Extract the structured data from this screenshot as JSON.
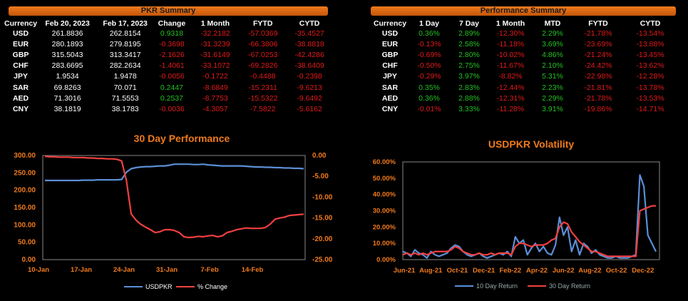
{
  "pkr_summary": {
    "title": "PKR Summary",
    "headers": [
      "Currency",
      "Feb 20, 2023",
      "Feb 17, 2023",
      "Change",
      "1 Month",
      "FYTD",
      "CYTD"
    ],
    "rows": [
      [
        "USD",
        "261.8836",
        "262.8154",
        "0.9318",
        "-32.2182",
        "-57.0369",
        "-35.4527"
      ],
      [
        "EUR",
        "280.1893",
        "279.8195",
        "-0.3698",
        "-31.3239",
        "-66.3806",
        "-38.8818"
      ],
      [
        "GBP",
        "315.5043",
        "313.3417",
        "-2.1626",
        "-31.6149",
        "-67.0253",
        "-42.4286"
      ],
      [
        "CHF",
        "283.6695",
        "282.2634",
        "-1.4061",
        "-33.1072",
        "-69.2826",
        "-38.6409"
      ],
      [
        "JPY",
        "1.9534",
        "1.9478",
        "-0.0056",
        "-0.1722",
        "-0.4488",
        "-0.2398"
      ],
      [
        "SAR",
        "69.8263",
        "70.071",
        "0.2447",
        "-8.6849",
        "-15.2311",
        "-9.6213"
      ],
      [
        "AED",
        "71.3016",
        "71.5553",
        "0.2537",
        "-8.7753",
        "-15.5322",
        "-9.6492"
      ],
      [
        "CNY",
        "38.1819",
        "38.1783",
        "-0.0036",
        "-4.3057",
        "-7.5822",
        "-5.6162"
      ]
    ]
  },
  "performance_summary": {
    "title": "Performance Summary",
    "headers": [
      "Currency",
      "1 Day",
      "7 Day",
      "1 Month",
      "MTD",
      "FYTD",
      "CYTD"
    ],
    "rows": [
      [
        "USD",
        "0.36%",
        "2.89%",
        "-12.30%",
        "2.29%",
        "-21.78%",
        "-13.54%"
      ],
      [
        "EUR",
        "-0.13%",
        "2.58%",
        "-11.18%",
        "3.69%",
        "-23.69%",
        "-13.88%"
      ],
      [
        "GBP",
        "-0.69%",
        "2.80%",
        "-10.02%",
        "4.86%",
        "-21.24%",
        "-13.45%"
      ],
      [
        "CHF",
        "-0.50%",
        "2.75%",
        "-11.67%",
        "2.10%",
        "-24.42%",
        "-13.62%"
      ],
      [
        "JPY",
        "-0.29%",
        "3.97%",
        "-8.82%",
        "5.31%",
        "-22.98%",
        "-12.28%"
      ],
      [
        "SAR",
        "0.35%",
        "2.83%",
        "-12.44%",
        "2.23%",
        "-21.81%",
        "-13.78%"
      ],
      [
        "AED",
        "0.36%",
        "2.88%",
        "-12.31%",
        "2.29%",
        "-21.78%",
        "-13.53%"
      ],
      [
        "CNY",
        "-0.01%",
        "3.33%",
        "-11.28%",
        "3.91%",
        "-19.86%",
        "-14.71%"
      ]
    ]
  },
  "colors": {
    "accent": "#f07a1c",
    "positive": "#22c222",
    "negative": "#e21a1a",
    "series_blue": "#5b8fd6",
    "series_red": "#f04040"
  },
  "chart_data": [
    {
      "type": "line",
      "title": "30 Day Performance",
      "x_ticks": [
        "10-Jan",
        "17-Jan",
        "24-Jan",
        "31-Jan",
        "7-Feb",
        "14-Feb"
      ],
      "y_ticks": [
        "300.00",
        "250.00",
        "200.00",
        "150.00",
        "100.00",
        "50.00",
        "0.00"
      ],
      "y2_ticks": [
        "0.00",
        "-5.00",
        "-10.00",
        "-15.00",
        "-20.00",
        "-25.00"
      ],
      "ylim": [
        0,
        300
      ],
      "y2lim": [
        -25,
        0
      ],
      "series": [
        {
          "name": "USDPKR",
          "axis": "left",
          "values": [
            228,
            228,
            228,
            228,
            228,
            228,
            228,
            228,
            229,
            229,
            229,
            230,
            230,
            230,
            230,
            230,
            231,
            252,
            262,
            265,
            267,
            268,
            268,
            269,
            270,
            270,
            272,
            275,
            275,
            275,
            275,
            274,
            274,
            275,
            273,
            272,
            271,
            270,
            270,
            270,
            270,
            270,
            269,
            268,
            267,
            267,
            266,
            266,
            265,
            265,
            264,
            264,
            263,
            263,
            262
          ]
        },
        {
          "name": "% Change",
          "axis": "right",
          "values": [
            -0.2,
            -0.3,
            -0.3,
            -0.4,
            -0.4,
            -0.4,
            -0.5,
            -0.5,
            -0.5,
            -0.6,
            -0.6,
            -0.7,
            -0.7,
            -0.8,
            -0.8,
            -0.9,
            -1.3,
            -6.0,
            -14.0,
            -15.5,
            -16.5,
            -17.2,
            -17.8,
            -18.5,
            -18.3,
            -17.8,
            -17.8,
            -18.0,
            -18.5,
            -19.5,
            -19.7,
            -19.6,
            -19.4,
            -19.5,
            -19.3,
            -19.2,
            -19.5,
            -19.3,
            -18.5,
            -18.2,
            -17.8,
            -17.6,
            -17.4,
            -17.5,
            -17.5,
            -17.5,
            -17.3,
            -16.5,
            -15.3,
            -15.0,
            -14.8,
            -14.4,
            -14.3,
            -14.2,
            -14.1
          ]
        }
      ]
    },
    {
      "type": "line",
      "title": "USDPKR Volatility",
      "x_ticks": [
        "Jun-21",
        "Aug-21",
        "Oct-21",
        "Dec-21",
        "Feb-22",
        "Apr-22",
        "Jun-22",
        "Aug-22",
        "Oct-22",
        "Dec-22"
      ],
      "y_ticks": [
        "60.00%",
        "50.00%",
        "40.00%",
        "30.00%",
        "20.00%",
        "10.00%",
        "0.00%"
      ],
      "ylim": [
        0,
        60
      ],
      "series": [
        {
          "name": "10 Day Return",
          "values": [
            5,
            4,
            2,
            6,
            4,
            3,
            1,
            5,
            3,
            2,
            3,
            4,
            7,
            9,
            8,
            5,
            3,
            2,
            3,
            4,
            2,
            1,
            2,
            3,
            4,
            3,
            5,
            2,
            14,
            10,
            12,
            3,
            7,
            10,
            5,
            8,
            4,
            3,
            9,
            26,
            15,
            20,
            5,
            12,
            3,
            10,
            8,
            4,
            6,
            3,
            2,
            1,
            1,
            2,
            1,
            1,
            1,
            2,
            3,
            52,
            45,
            15,
            10,
            5
          ]
        },
        {
          "name": "30 Day Return",
          "values": [
            3,
            4,
            3,
            4,
            3,
            4,
            3,
            4,
            5,
            5,
            5,
            5,
            6,
            8,
            7,
            5,
            4,
            3,
            3,
            4,
            3,
            3,
            4,
            3,
            4,
            4,
            4,
            3,
            8,
            10,
            10,
            9,
            8,
            9,
            9,
            9,
            10,
            12,
            13,
            20,
            23,
            22,
            17,
            14,
            11,
            9,
            7,
            5,
            5,
            4,
            3,
            2,
            2,
            2,
            2,
            2,
            2,
            2,
            2,
            30,
            31,
            32,
            33,
            33
          ]
        }
      ]
    }
  ]
}
